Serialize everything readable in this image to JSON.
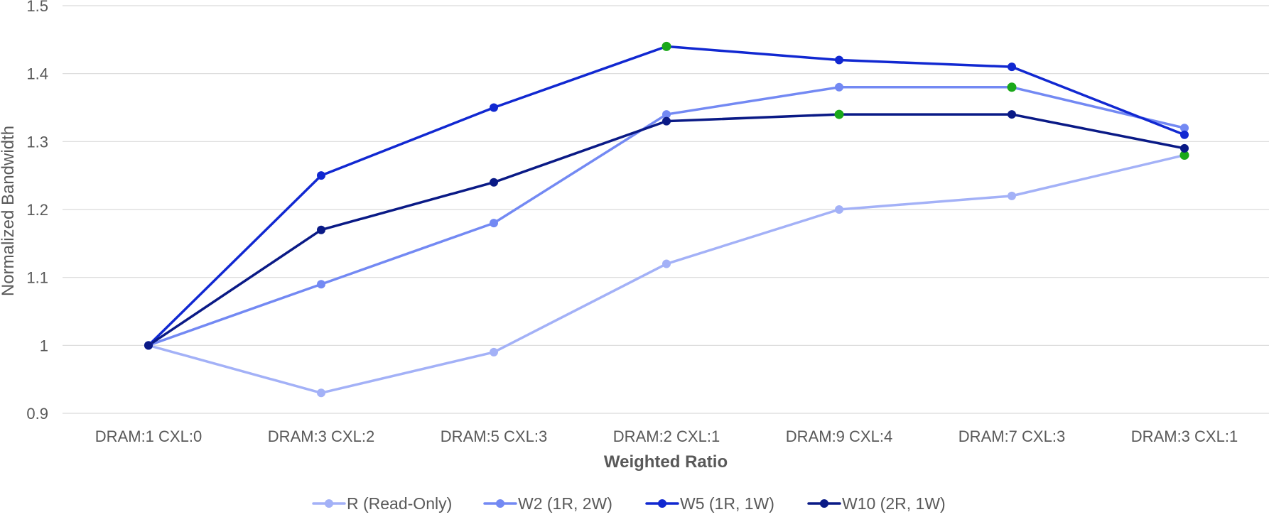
{
  "chart_data": {
    "type": "line",
    "title": "",
    "xlabel": "Weighted Ratio",
    "ylabel": "Normalized Bandwidth",
    "ylim": [
      0.9,
      1.5
    ],
    "yticks": [
      "0.9",
      "1",
      "1.1",
      "1.2",
      "1.3",
      "1.4",
      "1.5"
    ],
    "grid": "horizontal",
    "legend_position": "bottom",
    "categories": [
      "DRAM:1 CXL:0",
      "DRAM:3 CXL:2",
      "DRAM:5 CXL:3",
      "DRAM:2 CXL:1",
      "DRAM:9 CXL:4",
      "DRAM:7 CXL:3",
      "DRAM:3 CXL:1"
    ],
    "series": [
      {
        "name": "R (Read-Only)",
        "color": "#a3b1f7",
        "values": [
          1.0,
          0.93,
          0.99,
          1.12,
          1.2,
          1.22,
          1.28
        ],
        "highlight_index": 6
      },
      {
        "name": "W2 (1R, 2W)",
        "color": "#7389f3",
        "values": [
          1.0,
          1.09,
          1.18,
          1.34,
          1.38,
          1.38,
          1.32
        ],
        "highlight_index": 5
      },
      {
        "name": "W5 (1R, 1W)",
        "color": "#1128d1",
        "values": [
          1.0,
          1.25,
          1.35,
          1.44,
          1.42,
          1.41,
          1.31
        ],
        "highlight_index": 3
      },
      {
        "name": "W10 (2R, 1W)",
        "color": "#0a1a86",
        "values": [
          1.0,
          1.17,
          1.24,
          1.33,
          1.34,
          1.34,
          1.29
        ],
        "highlight_index": 4
      }
    ],
    "highlight_color": "#1aa81a"
  }
}
